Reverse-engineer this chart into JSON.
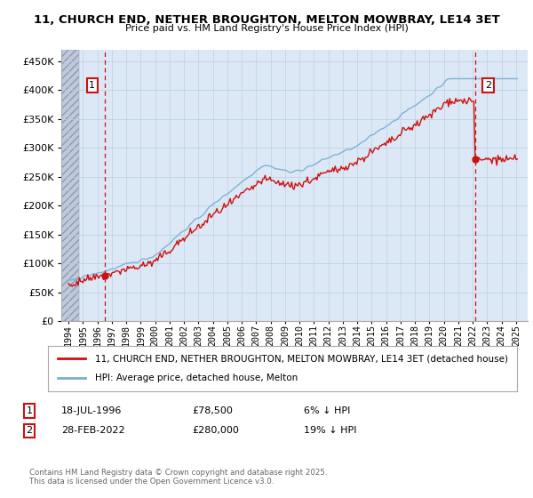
{
  "title": "11, CHURCH END, NETHER BROUGHTON, MELTON MOWBRAY, LE14 3ET",
  "subtitle": "Price paid vs. HM Land Registry's House Price Index (HPI)",
  "legend_entry1": "11, CHURCH END, NETHER BROUGHTON, MELTON MOWBRAY, LE14 3ET (detached house)",
  "legend_entry2": "HPI: Average price, detached house, Melton",
  "annotation1_date": "18-JUL-1996",
  "annotation1_price": "£78,500",
  "annotation1_note": "6% ↓ HPI",
  "annotation2_date": "28-FEB-2022",
  "annotation2_price": "£280,000",
  "annotation2_note": "19% ↓ HPI",
  "footer": "Contains HM Land Registry data © Crown copyright and database right 2025.\nThis data is licensed under the Open Government Licence v3.0.",
  "hpi_color": "#7bafd4",
  "price_color": "#cc1111",
  "annotation_color": "#cc1111",
  "hatch_color": "#c8cce0",
  "bg_color": "#dce8f5",
  "grid_color": "#b8cfe0",
  "ylim": [
    0,
    470000
  ],
  "yticks": [
    0,
    50000,
    100000,
    150000,
    200000,
    250000,
    300000,
    350000,
    400000,
    450000
  ],
  "xlim_start": 1993.5,
  "xlim_end": 2025.8,
  "ann1_x": 1996.54,
  "ann1_y": 78500,
  "ann2_x": 2022.16,
  "ann2_y": 280000,
  "hatch_end": 1994.75,
  "seed": 42
}
